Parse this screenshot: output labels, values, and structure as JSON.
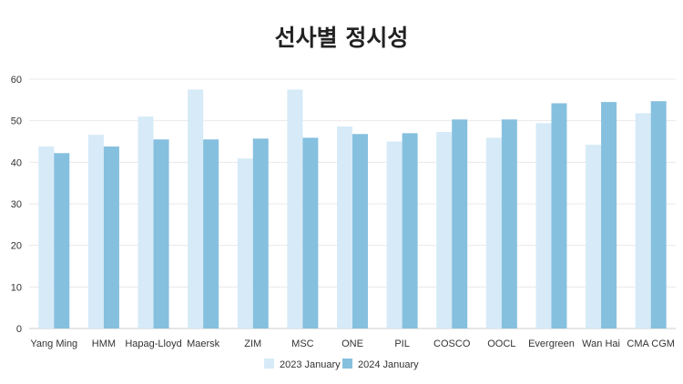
{
  "chart_data": {
    "type": "bar",
    "title": "선사별 정시성",
    "xlabel": "",
    "ylabel": "",
    "ylim": [
      0,
      60
    ],
    "yticks": [
      0,
      10,
      20,
      30,
      40,
      50,
      60
    ],
    "grid": true,
    "legend_position": "bottom",
    "categories": [
      "Yang Ming",
      "HMM",
      "Hapag-Lloyd",
      "Maersk",
      "ZIM",
      "MSC",
      "ONE",
      "PIL",
      "COSCO",
      "OOCL",
      "Evergreen",
      "Wan Hai",
      "CMA CGM"
    ],
    "series": [
      {
        "name": "2023 January",
        "color": "#d6eaf7",
        "values": [
          43.8,
          46.6,
          51.0,
          57.5,
          40.9,
          57.5,
          48.6,
          45.0,
          47.3,
          45.9,
          49.4,
          44.2,
          51.8
        ]
      },
      {
        "name": "2024 January",
        "color": "#86c0df",
        "values": [
          42.2,
          43.8,
          45.5,
          45.5,
          45.7,
          45.9,
          46.8,
          47.0,
          50.3,
          50.3,
          54.2,
          54.5,
          54.7
        ]
      }
    ]
  }
}
